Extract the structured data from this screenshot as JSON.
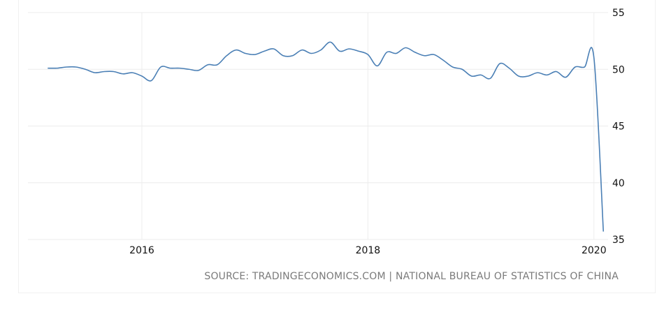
{
  "chart_data": {
    "type": "line",
    "title": "",
    "xlabel": "",
    "ylabel": "",
    "x_start": "2015-03",
    "x_end": "2020-02",
    "frequency": "monthly",
    "x_ticks": [
      "2016",
      "2018",
      "2020"
    ],
    "y_ticks": [
      "55",
      "50",
      "45",
      "40",
      "35"
    ],
    "ylim": [
      35,
      55
    ],
    "y_axis_side": "right",
    "grid": true,
    "line_color": "#4a7fb5",
    "series": [
      {
        "values": [
          50.1,
          50.1,
          50.2,
          50.2,
          50.0,
          49.7,
          49.8,
          49.8,
          49.6,
          49.7,
          49.4,
          49.0,
          50.2,
          50.1,
          50.1,
          50.0,
          49.9,
          50.4,
          50.4,
          51.2,
          51.7,
          51.4,
          51.3,
          51.6,
          51.8,
          51.2,
          51.2,
          51.7,
          51.4,
          51.7,
          52.4,
          51.6,
          51.8,
          51.6,
          51.3,
          50.3,
          51.5,
          51.4,
          51.9,
          51.5,
          51.2,
          51.3,
          50.8,
          50.2,
          50.0,
          49.4,
          49.5,
          49.2,
          50.5,
          50.1,
          49.4,
          49.4,
          49.7,
          49.5,
          49.8,
          49.3,
          50.2,
          50.2,
          51.0,
          35.7
        ]
      }
    ]
  },
  "source": "SOURCE: TRADINGECONOMICS.COM | NATIONAL BUREAU OF STATISTICS OF CHINA"
}
